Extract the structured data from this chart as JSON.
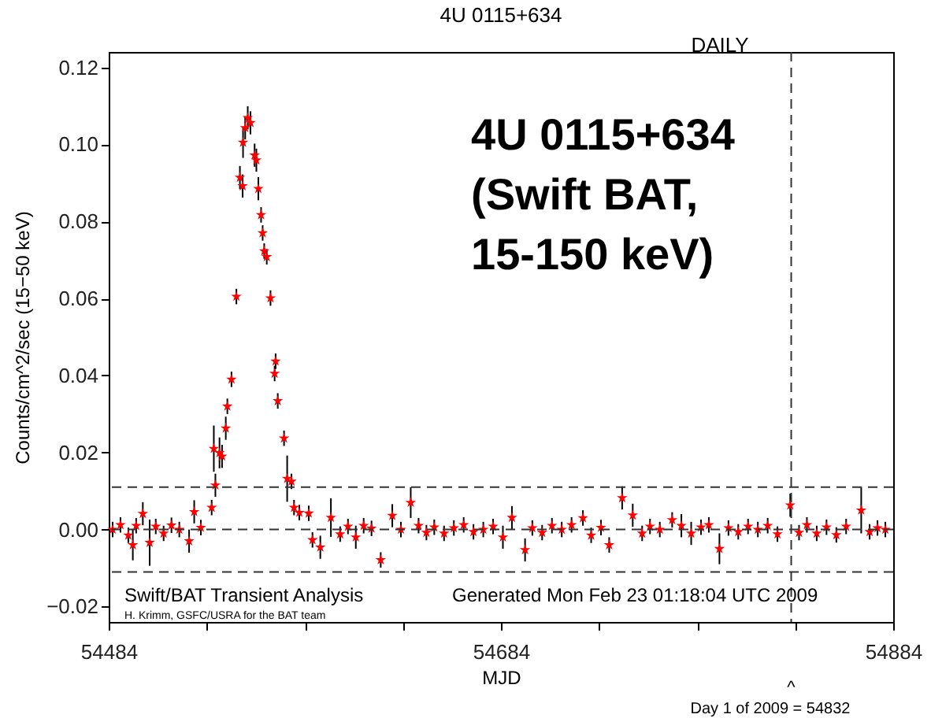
{
  "chart_data": {
    "type": "scatter",
    "title": "4U 0115+634",
    "xlabel": "MJD",
    "ylabel": "Counts/cm^2/sec (15−50 keV)",
    "annotations": [
      "DAILY",
      "4U 0115+634\n(Swift BAT,\n15-150 keV)",
      "Swift/BAT Transient Analysis",
      "Generated Mon Feb 23 01:18:04 UTC 2009",
      "H. Krimm, GSFC/USRA for the BAT team",
      "^",
      "Day 1 of 2009 = 54832"
    ],
    "xlim": [
      54484,
      54884
    ],
    "xticks": [
      54484,
      {
        "value": 54534,
        "label": null
      },
      {
        "value": 54584,
        "label": null
      },
      {
        "value": 54634,
        "label": null
      },
      54684,
      {
        "value": 54734,
        "label": null
      },
      {
        "value": 54784,
        "label": null
      },
      {
        "value": 54834,
        "label": null
      },
      54884
    ],
    "ylim": [
      -0.024,
      0.124
    ],
    "yticks": [
      {
        "value": -0.02,
        "label": "−0.02"
      },
      {
        "value": 0,
        "label": "0.00"
      },
      {
        "value": 0.02,
        "label": "0.02"
      },
      {
        "value": 0.04,
        "label": "0.04"
      },
      {
        "value": 0.06,
        "label": "0.06"
      },
      {
        "value": 0.08,
        "label": "0.08"
      },
      {
        "value": 0.1,
        "label": "0.10"
      },
      {
        "value": 0.12,
        "label": "0.12"
      }
    ],
    "grid": false,
    "marker": "star",
    "ref_lines": [
      {
        "axis": "y",
        "value": 0.011,
        "line_style": "dashed"
      },
      {
        "axis": "y",
        "value": -0.011,
        "line_style": "dashed"
      },
      {
        "axis": "y",
        "value": 0,
        "line_style": "dashed"
      },
      {
        "axis": "x",
        "value": 54832,
        "line_style": "dashed"
      }
    ],
    "series": [
      {
        "color": "#ff0000",
        "x": [
          54486,
          54490,
          54494,
          54496.3,
          54498,
          54501.4,
          54504.9,
          54508,
          54512,
          54516,
          54520,
          54525,
          54527.6,
          54531,
          54536.5,
          54537.6,
          54538.4,
          54540.5,
          54541.8,
          54543.7,
          54544.5,
          54546.6,
          54549.1,
          54550.9,
          54552.3,
          54552.5,
          54553.6,
          54554.9,
          54556.3,
          54558.4,
          54559.3,
          54560.3,
          54561.7,
          54562.5,
          54563.3,
          54564.6,
          54566.5,
          54568.6,
          54569.1,
          54570.2,
          54573.4,
          54575,
          54577.2,
          54578.5,
          54581.2,
          54586,
          54587.9,
          54591.9,
          54597.3,
          54602,
          54606,
          54610,
          54614,
          54618,
          54622.7,
          54628.6,
          54633,
          54638,
          54642,
          54646,
          54650,
          54655,
          54660,
          54665,
          54670,
          54675,
          54680,
          54685,
          54689.6,
          54696.3,
          54700,
          54705,
          54710,
          54715,
          54720,
          54725.8,
          54730,
          54735,
          54739.2,
          54745.8,
          54751.2,
          54756,
          54760,
          54765,
          54771.3,
          54776,
          54781,
          54786,
          54790,
          54795.4,
          54800,
          54805,
          54810,
          54815,
          54820,
          54825,
          54831.5,
          54836,
          54840,
          54845,
          54850,
          54855,
          54860,
          54867.7,
          54872,
          54876,
          54880
        ],
        "values": [
          0,
          0.0012,
          -0.0015,
          -0.004,
          0.001,
          0.0041,
          -0.0034,
          0.0008,
          -0.001,
          0.0011,
          0,
          -0.003,
          0.0046,
          0.0005,
          0.0057,
          0.021,
          0.0115,
          0.0199,
          0.019,
          0.0263,
          0.032,
          0.039,
          0.0605,
          0.0914,
          0.0892,
          0.1005,
          0.1043,
          0.1069,
          0.1056,
          0.0972,
          0.0959,
          0.0885,
          0.0817,
          0.077,
          0.0723,
          0.0708,
          0.0601,
          0.0405,
          0.0437,
          0.0334,
          0.0237,
          0.0132,
          0.0125,
          0.0057,
          0.0044,
          0.0042,
          -0.0027,
          -0.0046,
          0.0031,
          -0.0012,
          0.0008,
          -0.002,
          0.001,
          0.0003,
          -0.0079,
          0.0036,
          0,
          0.007,
          0.001,
          -0.0008,
          0.0006,
          -0.001,
          0.0004,
          0.0012,
          -0.0006,
          0,
          0.0008,
          -0.002,
          0.0031,
          -0.0053,
          0.0004,
          -0.0008,
          0.001,
          0,
          0.0012,
          0.003,
          -0.0015,
          0.0005,
          -0.004,
          0.0082,
          0.0037,
          -0.001,
          0.0008,
          0,
          0.0025,
          0.001,
          -0.001,
          0.0006,
          0.0012,
          -0.005,
          0.0004,
          -0.0006,
          0.0008,
          0,
          0.001,
          -0.0012,
          0.0063,
          -0.0008,
          0.0012,
          -0.001,
          0.0006,
          -0.0014,
          0.0008,
          0.005,
          -0.0006,
          0.0004,
          0
        ],
        "errors": [
          0.002,
          0.002,
          0.002,
          0.004,
          0.002,
          0.003,
          0.006,
          0.002,
          0.002,
          0.002,
          0.002,
          0.003,
          0.003,
          0.002,
          0.002,
          0.006,
          0.003,
          0.004,
          0.003,
          0.003,
          0.002,
          0.002,
          0.002,
          0.003,
          0.003,
          0.004,
          0.003,
          0.003,
          0.003,
          0.003,
          0.003,
          0.003,
          0.002,
          0.002,
          0.002,
          0.002,
          0.002,
          0.002,
          0.002,
          0.002,
          0.002,
          0.006,
          0.002,
          0.002,
          0.002,
          0.002,
          0.002,
          0.003,
          0.005,
          0.002,
          0.002,
          0.003,
          0.002,
          0.002,
          0.002,
          0.003,
          0.002,
          0.004,
          0.002,
          0.002,
          0.002,
          0.002,
          0.002,
          0.002,
          0.002,
          0.002,
          0.002,
          0.003,
          0.003,
          0.003,
          0.002,
          0.002,
          0.002,
          0.002,
          0.002,
          0.002,
          0.002,
          0.002,
          0.002,
          0.003,
          0.003,
          0.002,
          0.002,
          0.002,
          0.002,
          0.003,
          0.003,
          0.002,
          0.002,
          0.004,
          0.002,
          0.002,
          0.002,
          0.002,
          0.002,
          0.002,
          0.003,
          0.002,
          0.002,
          0.002,
          0.002,
          0.002,
          0.002,
          0.006,
          0.002,
          0.002,
          0.002
        ]
      }
    ]
  }
}
